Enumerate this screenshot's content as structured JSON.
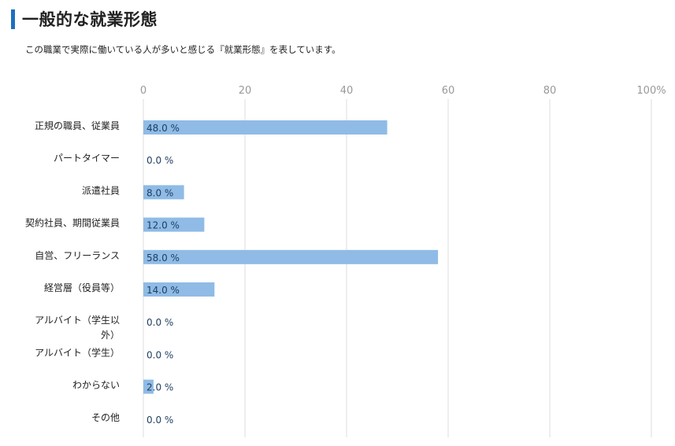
{
  "header": {
    "title": "一般的な就業形態",
    "description": "この職業で実際に働いている人が多いと感じる『就業形態』を表しています。"
  },
  "colors": {
    "accent": "#1e6fc0",
    "bar": "#8fbbe6",
    "grid": "#dddddd"
  },
  "chart_data": {
    "type": "bar",
    "orientation": "horizontal",
    "categories": [
      [
        "正規の職員、従業員"
      ],
      [
        "パートタイマー"
      ],
      [
        "派遣社員"
      ],
      [
        "契約社員、期間従業員"
      ],
      [
        "自営、フリーランス"
      ],
      [
        "経営層（役員等）"
      ],
      [
        "アルバイト（学生以",
        "外）"
      ],
      [
        "アルバイト（学生）"
      ],
      [
        "わからない"
      ],
      [
        "その他"
      ]
    ],
    "values": [
      48.0,
      0.0,
      8.0,
      12.0,
      58.0,
      14.0,
      0.0,
      0.0,
      2.0,
      0.0
    ],
    "value_labels": [
      "48.0 %",
      "0.0 %",
      "8.0 %",
      "12.0 %",
      "58.0 %",
      "14.0 %",
      "0.0 %",
      "0.0 %",
      "2.0 %",
      "0.0 %"
    ],
    "xlim": [
      0,
      100
    ],
    "ticks": [
      0,
      20,
      40,
      60,
      80,
      100
    ],
    "tick_labels": [
      "0",
      "20",
      "40",
      "60",
      "80",
      "100%"
    ],
    "grid": true
  }
}
